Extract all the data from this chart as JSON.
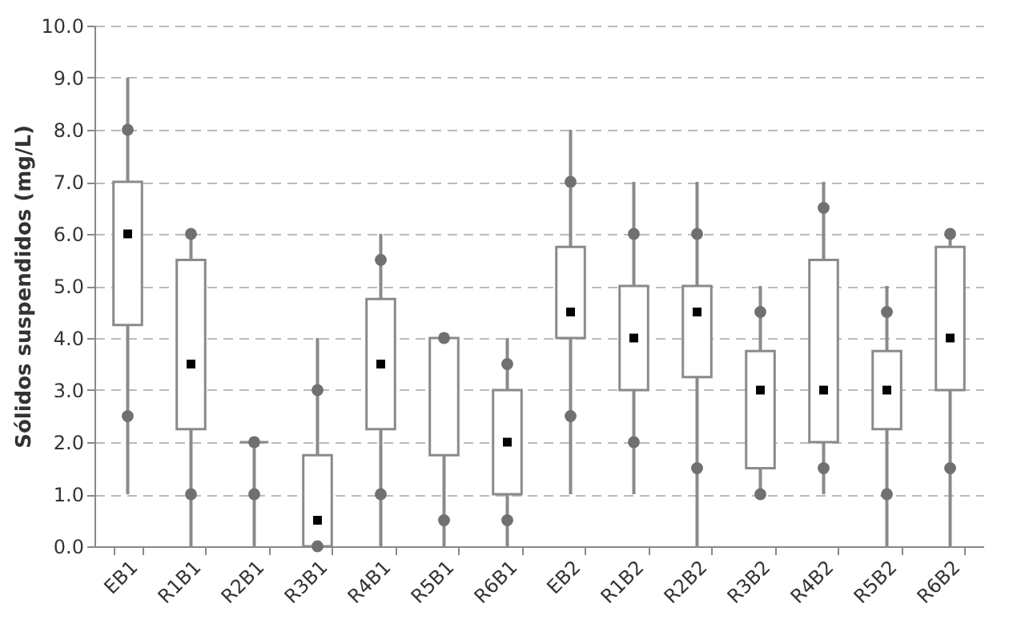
{
  "chart_data": {
    "type": "box",
    "ylabel": "Sólidos suspendidos (mg/L)",
    "categories": [
      "EB1",
      "R1B1",
      "R2B1",
      "R3B1",
      "R4B1",
      "R5B1",
      "R6B1",
      "EB2",
      "R1B2",
      "R2B2",
      "R3B2",
      "R4B2",
      "R5B2",
      "R6B2"
    ],
    "boxes": [
      {
        "low": 1,
        "q1": 4.25,
        "median": 6,
        "q3": 7,
        "high": 9
      },
      {
        "low": 0,
        "q1": 2.25,
        "median": 3.5,
        "q3": 5.5,
        "high": 6
      },
      {
        "low": 0,
        "q1": 2,
        "median": 2,
        "q3": 2,
        "high": 2
      },
      {
        "low": 0,
        "q1": 0,
        "median": 0.5,
        "q3": 1.75,
        "high": 4
      },
      {
        "low": 0,
        "q1": 2.25,
        "median": 3.5,
        "q3": 4.75,
        "high": 6
      },
      {
        "low": 0,
        "q1": 1.75,
        "median": 4,
        "q3": 4,
        "high": 4
      },
      {
        "low": 0,
        "q1": 1,
        "median": 2,
        "q3": 3,
        "high": 4
      },
      {
        "low": 1,
        "q1": 4,
        "median": 4.5,
        "q3": 5.75,
        "high": 8
      },
      {
        "low": 1,
        "q1": 3,
        "median": 4,
        "q3": 5,
        "high": 7
      },
      {
        "low": 0,
        "q1": 3.25,
        "median": 4.5,
        "q3": 5,
        "high": 7
      },
      {
        "low": 1,
        "q1": 1.5,
        "median": 3,
        "q3": 3.75,
        "high": 5
      },
      {
        "low": 1,
        "q1": 2,
        "median": 3,
        "q3": 5.5,
        "high": 7
      },
      {
        "low": 0,
        "q1": 2.25,
        "median": 3,
        "q3": 3.75,
        "high": 5
      },
      {
        "low": 0,
        "q1": 3,
        "median": 4,
        "q3": 5.75,
        "high": 6
      }
    ],
    "series": [
      {
        "type": "scatter",
        "color": "#707070",
        "x": [
          "EB1",
          "EB1",
          "R1B1",
          "R1B1",
          "R2B1",
          "R2B1",
          "R3B1",
          "R3B1",
          "R4B1",
          "R4B1",
          "R5B1",
          "R5B1",
          "R6B1",
          "R6B1",
          "EB2",
          "EB2",
          "R1B2",
          "R1B2",
          "R2B2",
          "R2B2",
          "R3B2",
          "R3B2",
          "R4B2",
          "R4B2",
          "R5B2",
          "R5B2",
          "R6B2",
          "R6B2"
        ],
        "values": [
          8,
          2.5,
          6,
          1,
          2,
          1,
          3,
          0,
          5.5,
          1,
          4,
          0.5,
          3.5,
          0.5,
          7,
          2.5,
          6,
          2,
          6,
          1.5,
          4.5,
          1,
          6.5,
          1.5,
          4.5,
          1,
          6,
          1.5
        ]
      }
    ],
    "marker": "circle",
    "ylim": [
      0,
      10
    ],
    "yticks": [
      {
        "value": 0,
        "label": "0.0"
      },
      {
        "value": 1,
        "label": "1.0"
      },
      {
        "value": 2,
        "label": "2.0"
      },
      {
        "value": 3,
        "label": "3.0"
      },
      {
        "value": 4,
        "label": "4.0"
      },
      {
        "value": 5,
        "label": "5.0"
      },
      {
        "value": 6,
        "label": "6.0"
      },
      {
        "value": 7,
        "label": "7.0"
      },
      {
        "value": 8,
        "label": "8.0"
      },
      {
        "value": 9,
        "label": "9.0"
      },
      {
        "value": 10,
        "label": "10.0"
      }
    ],
    "grid": "y",
    "color": "#8a8a8a"
  }
}
